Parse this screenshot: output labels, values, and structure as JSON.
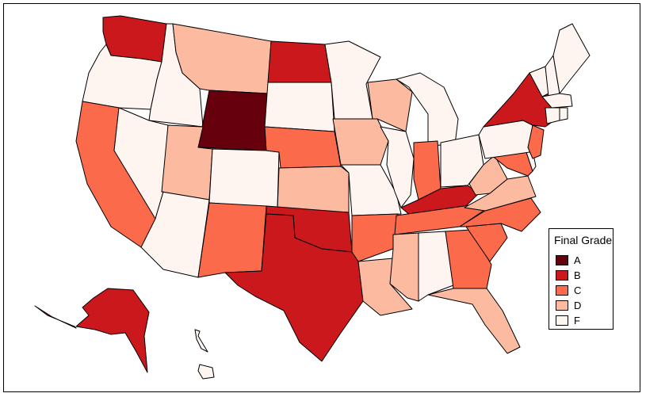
{
  "legend": {
    "title": "Final Grade",
    "items": [
      {
        "grade": "A",
        "color": "#67000d"
      },
      {
        "grade": "B",
        "color": "#cb181d"
      },
      {
        "grade": "C",
        "color": "#fb6a4a"
      },
      {
        "grade": "D",
        "color": "#fcbba1"
      },
      {
        "grade": "F",
        "color": "#fff5f0"
      }
    ]
  },
  "states": {
    "WA": "B",
    "OR": "F",
    "CA": "C",
    "ID": "F",
    "NV": "F",
    "MT": "D",
    "WY": "A",
    "UT": "D",
    "AZ": "F",
    "CO": "F",
    "NM": "C",
    "ND": "B",
    "SD": "F",
    "NE": "C",
    "KS": "D",
    "OK": "B",
    "TX": "B",
    "MN": "F",
    "IA": "D",
    "MO": "F",
    "AR": "C",
    "LA": "D",
    "WI": "D",
    "IL": "F",
    "MI": "F",
    "IN": "C",
    "OH": "F",
    "KY": "B",
    "TN": "C",
    "MS": "D",
    "AL": "F",
    "GA": "C",
    "FL": "D",
    "SC": "C",
    "NC": "C",
    "VA": "D",
    "WV": "D",
    "PA": "F",
    "NY": "B",
    "NJ": "C",
    "DE": "F",
    "MD": "C",
    "VT": "F",
    "NH": "F",
    "ME": "F",
    "MA": "F",
    "CT": "F",
    "RI": "F",
    "AK": "B",
    "HI": "F"
  }
}
